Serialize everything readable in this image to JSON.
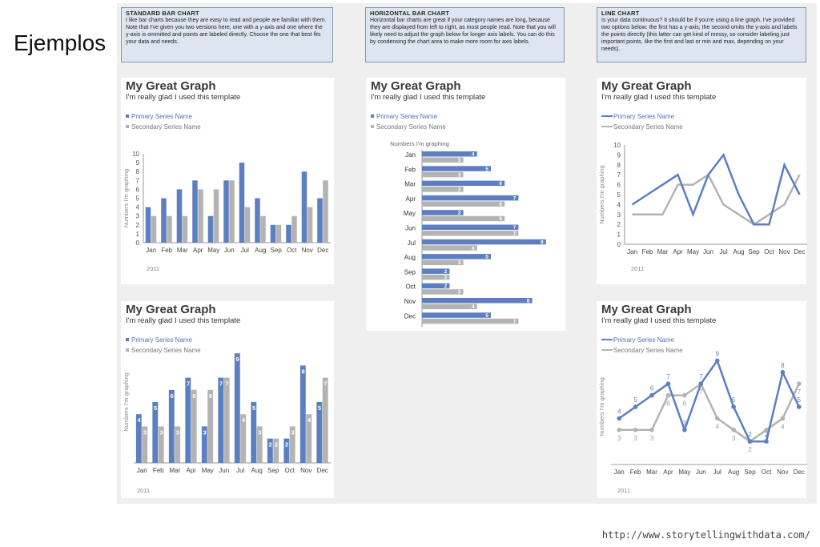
{
  "slide": {
    "title": "Ejemplos",
    "url": "http://www.storytellingwithdata.com/"
  },
  "notes": [
    {
      "heading": "STANDARD BAR CHART",
      "text": "I like bar charts because they are easy to read and people are familiar with them. Note that I've given you two versions here, one with a y-axis and one where the y-axis is ommitted and points are labeled directly. Choose the one that best fits your data and needs."
    },
    {
      "heading": "HORIZONTAL BAR CHART",
      "text": "Horizontal bar charts are great if your category names are long, because they are displayed from left to right, as most people read. Note that you will likely need to adjust the graph below for longer axis labels. You can do this by condensing the chart area to make more room for axis labels."
    },
    {
      "heading": "LINE CHART",
      "text": "Is your data continuous? It should be if you're using a line graph. I've provided two options below: the first has a y-axis; the second omits the y-axis and labels the points directly (this latter can get kind of messy, so consider labeling just important points, like the first and last or min and max, depending on your needs)."
    }
  ],
  "colors": {
    "primary": "#5b7fc0",
    "secondary": "#b3b3b3"
  },
  "chart_data": [
    {
      "type": "bar",
      "id": "bar-axis",
      "title": "My Great Graph",
      "subtitle": "I'm really glad I used this template",
      "ylabel": "Numbers I'm graphing",
      "ylim": [
        0,
        10
      ],
      "yticks": [
        "0",
        "1",
        "2",
        "3",
        "4",
        "5",
        "6",
        "7",
        "8",
        "9",
        "10"
      ],
      "footnote": "2011",
      "legend": "top-left",
      "categories": [
        "Jan",
        "Feb",
        "Mar",
        "Apr",
        "May",
        "Jun",
        "Jul",
        "Aug",
        "Sep",
        "Oct",
        "Nov",
        "Dec"
      ],
      "series": [
        {
          "name": "Primary Series Name",
          "values": [
            4,
            5,
            6,
            7,
            3,
            7,
            9,
            5,
            2,
            2,
            8,
            5
          ]
        },
        {
          "name": "Secondary Series Name",
          "values": [
            3,
            3,
            3,
            6,
            6,
            7,
            4,
            3,
            2,
            3,
            4,
            7
          ]
        }
      ]
    },
    {
      "type": "bar",
      "id": "bar-labeled",
      "title": "My Great Graph",
      "subtitle": "I'm really glad I used this template",
      "ylabel": "Numbers I'm graphing",
      "ylim": [
        0,
        10
      ],
      "footnote": "2011",
      "legend": "top-left",
      "categories": [
        "Jan",
        "Feb",
        "Mar",
        "Apr",
        "May",
        "Jun",
        "Jul",
        "Aug",
        "Sep",
        "Oct",
        "Nov",
        "Dec"
      ],
      "series": [
        {
          "name": "Primary Series Name",
          "values": [
            4,
            5,
            6,
            7,
            3,
            7,
            9,
            5,
            2,
            2,
            8,
            5
          ]
        },
        {
          "name": "Secondary Series Name",
          "values": [
            3,
            3,
            3,
            6,
            6,
            7,
            4,
            3,
            2,
            3,
            4,
            7
          ]
        }
      ]
    },
    {
      "type": "bar",
      "orientation": "horizontal",
      "id": "hbar",
      "title": "My Great Graph",
      "subtitle": "I'm really glad I used this template",
      "axis_title": "Numbers I'm graphing",
      "xlim": [
        0,
        10
      ],
      "legend": "top-left",
      "categories": [
        "Jan",
        "Feb",
        "Mar",
        "Apr",
        "May",
        "Jun",
        "Jul",
        "Aug",
        "Sep",
        "Oct",
        "Nov",
        "Dec"
      ],
      "series": [
        {
          "name": "Primary Series Name",
          "values": [
            4,
            5,
            6,
            7,
            3,
            7,
            9,
            5,
            2,
            2,
            8,
            5
          ]
        },
        {
          "name": "Secondary Series Name",
          "values": [
            3,
            3,
            3,
            6,
            6,
            7,
            4,
            3,
            2,
            3,
            4,
            7
          ]
        }
      ]
    },
    {
      "type": "line",
      "id": "line-axis",
      "title": "My Great Graph",
      "subtitle": "I'm really glad I used this template",
      "ylabel": "Numbers I'm graphing",
      "ylim": [
        0,
        10
      ],
      "yticks": [
        "0",
        "1",
        "2",
        "3",
        "4",
        "5",
        "6",
        "7",
        "8",
        "9",
        "10"
      ],
      "footnote": "2011",
      "legend": "top-left",
      "categories": [
        "Jan",
        "Feb",
        "Mar",
        "Apr",
        "May",
        "Jun",
        "Jul",
        "Aug",
        "Sep",
        "Oct",
        "Nov",
        "Dec"
      ],
      "series": [
        {
          "name": "Primary Series Name",
          "values": [
            4,
            5,
            6,
            7,
            3,
            7,
            9,
            5,
            2,
            2,
            8,
            5
          ]
        },
        {
          "name": "Secondary Series Name",
          "values": [
            3,
            3,
            3,
            6,
            6,
            7,
            4,
            3,
            2,
            3,
            4,
            7
          ]
        }
      ]
    },
    {
      "type": "line",
      "id": "line-labeled",
      "title": "My Great Graph",
      "subtitle": "I'm really glad I used this template",
      "ylabel": "Numbers I'm graphing",
      "ylim": [
        0,
        10
      ],
      "footnote": "2011",
      "legend": "top-left",
      "categories": [
        "Jan",
        "Feb",
        "Mar",
        "Apr",
        "May",
        "Jun",
        "Jul",
        "Aug",
        "Sep",
        "Oct",
        "Nov",
        "Dec"
      ],
      "series": [
        {
          "name": "Primary Series Name",
          "values": [
            4,
            5,
            6,
            7,
            3,
            7,
            9,
            5,
            2,
            2,
            8,
            5
          ]
        },
        {
          "name": "Secondary Series Name",
          "values": [
            3,
            3,
            3,
            6,
            6,
            7,
            4,
            3,
            2,
            3,
            4,
            7
          ]
        }
      ]
    }
  ]
}
